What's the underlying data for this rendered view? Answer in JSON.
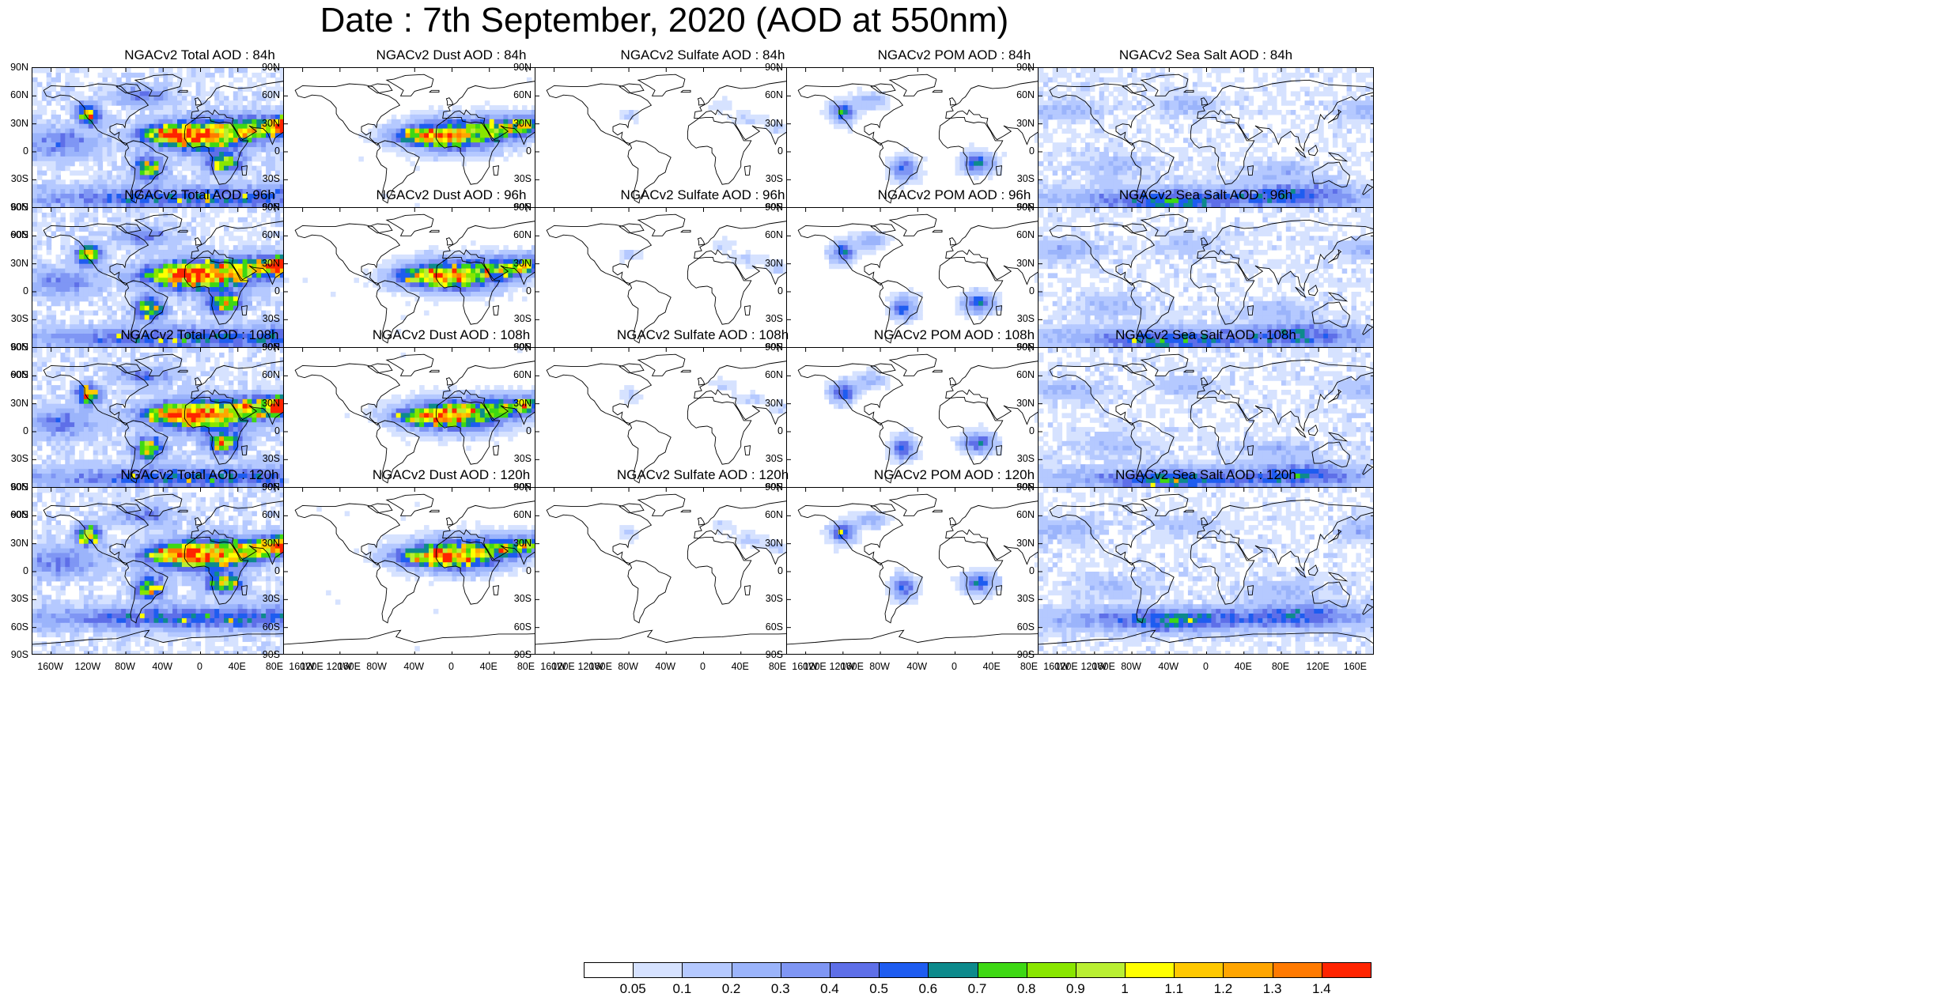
{
  "title": "Date : 7th September, 2020 (AOD at 550nm)",
  "lat_labels": [
    "90N",
    "60N",
    "30N",
    "0",
    "30S",
    "60S",
    "90S"
  ],
  "lon_labels": [
    "160W",
    "120W",
    "80W",
    "40W",
    "0",
    "40E",
    "80E",
    "120E",
    "160E"
  ],
  "species": [
    {
      "key": "total",
      "intensity": 1.0,
      "spread": 1.0,
      "hotspots": 1.0
    },
    {
      "key": "dust",
      "intensity": 0.9,
      "spread": 0.35,
      "hotspots": 0.8
    },
    {
      "key": "sulfate",
      "intensity": 0.35,
      "spread": 0.15,
      "hotspots": 0.0
    },
    {
      "key": "pom",
      "intensity": 0.6,
      "spread": 0.3,
      "hotspots": 0.6
    },
    {
      "key": "seasalt",
      "intensity": 0.55,
      "spread": 0.85,
      "hotspots": 0.1
    }
  ],
  "panels": [
    {
      "title": "NGACv2 Total AOD : 84h",
      "species": 0,
      "row": 0
    },
    {
      "title": "NGACv2 Dust AOD : 84h",
      "species": 1,
      "row": 0
    },
    {
      "title": "NGACv2 Sulfate AOD : 84h",
      "species": 2,
      "row": 0
    },
    {
      "title": "NGACv2 POM AOD : 84h",
      "species": 3,
      "row": 0
    },
    {
      "title": "NGACv2 Sea Salt AOD : 84h",
      "species": 4,
      "row": 0
    },
    {
      "title": "NGACv2 Total AOD : 96h",
      "species": 0,
      "row": 1
    },
    {
      "title": "NGACv2 Dust AOD : 96h",
      "species": 1,
      "row": 1
    },
    {
      "title": "NGACv2 Sulfate AOD : 96h",
      "species": 2,
      "row": 1
    },
    {
      "title": "NGACv2 POM AOD : 96h",
      "species": 3,
      "row": 1
    },
    {
      "title": "NGACv2 Sea Salt AOD : 96h",
      "species": 4,
      "row": 1
    },
    {
      "title": "NGACv2 Total AOD : 108h",
      "species": 0,
      "row": 2
    },
    {
      "title": "NGACv2 Dust AOD : 108h",
      "species": 1,
      "row": 2
    },
    {
      "title": "NGACv2 Sulfate AOD : 108h",
      "species": 2,
      "row": 2
    },
    {
      "title": "NGACv2 POM AOD : 108h",
      "species": 3,
      "row": 2
    },
    {
      "title": "NGACv2 Sea Salt AOD : 108h",
      "species": 4,
      "row": 2
    },
    {
      "title": "NGACv2 Total AOD : 120h",
      "species": 0,
      "row": 3
    },
    {
      "title": "NGACv2 Dust AOD : 120h",
      "species": 1,
      "row": 3
    },
    {
      "title": "NGACv2 Sulfate AOD : 120h",
      "species": 2,
      "row": 3
    },
    {
      "title": "NGACv2 POM AOD : 120h",
      "species": 3,
      "row": 3
    },
    {
      "title": "NGACv2 Sea Salt  AOD : 120h",
      "species": 4,
      "row": 3
    }
  ],
  "colorbar": {
    "labels": [
      "0.05",
      "0.1",
      "0.2",
      "0.3",
      "0.4",
      "0.5",
      "0.6",
      "0.7",
      "0.8",
      "0.9",
      "1",
      "1.1",
      "1.2",
      "1.3",
      "1.4"
    ],
    "colors": [
      "#ffffff",
      "#d6e2ff",
      "#b5c9ff",
      "#9bb4fb",
      "#7f96f4",
      "#5e6fe8",
      "#1e5cf0",
      "#0d8a8c",
      "#3ed814",
      "#89e600",
      "#b9ef33",
      "#ffff00",
      "#ffc800",
      "#ffa500",
      "#ff7a00",
      "#ff2400"
    ]
  }
}
